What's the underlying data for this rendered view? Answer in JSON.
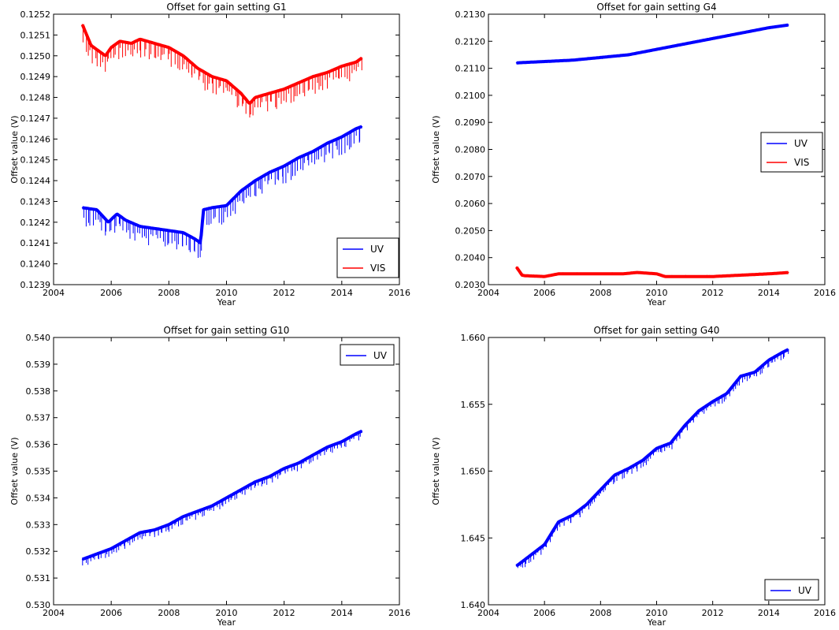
{
  "chart_data": [
    {
      "type": "line",
      "title": "Offset for gain setting G1",
      "xlabel": "Year",
      "ylabel": "Offset value (V)",
      "xlim": [
        2004,
        2016
      ],
      "ylim": [
        0.1239,
        0.1252
      ],
      "xticks": [
        "2004",
        "2006",
        "2008",
        "2010",
        "2012",
        "2014",
        "2016"
      ],
      "yticks": [
        "0.1239",
        "0.1240",
        "0.1241",
        "0.1242",
        "0.1243",
        "0.1244",
        "0.1245",
        "0.1246",
        "0.1247",
        "0.1248",
        "0.1249",
        "0.1250",
        "0.1251",
        "0.1252"
      ],
      "legend_position": "lower-right",
      "grid": false,
      "series": [
        {
          "name": "UV",
          "color": "#0000ff",
          "x": [
            2005.0,
            2005.5,
            2005.9,
            2006.2,
            2006.5,
            2007.0,
            2007.5,
            2008.0,
            2008.5,
            2008.9,
            2009.1,
            2009.2,
            2009.5,
            2010.0,
            2010.5,
            2011.0,
            2011.5,
            2012.0,
            2012.5,
            2013.0,
            2013.5,
            2014.0,
            2014.5,
            2014.7
          ],
          "values": [
            0.12427,
            0.12426,
            0.1242,
            0.12424,
            0.12421,
            0.12418,
            0.12417,
            0.12416,
            0.12415,
            0.12412,
            0.1241,
            0.12426,
            0.12427,
            0.12428,
            0.12435,
            0.1244,
            0.12444,
            0.12447,
            0.12451,
            0.12454,
            0.12458,
            0.12461,
            0.12465,
            0.12466
          ]
        },
        {
          "name": "VIS",
          "color": "#ff0000",
          "x": [
            2005.0,
            2005.3,
            2005.8,
            2006.0,
            2006.3,
            2006.7,
            2007.0,
            2007.5,
            2008.0,
            2008.5,
            2009.0,
            2009.5,
            2010.0,
            2010.5,
            2010.8,
            2011.0,
            2011.5,
            2012.0,
            2012.5,
            2013.0,
            2013.5,
            2014.0,
            2014.5,
            2014.7
          ],
          "values": [
            0.12515,
            0.12505,
            0.125,
            0.12504,
            0.12507,
            0.12506,
            0.12508,
            0.12506,
            0.12504,
            0.125,
            0.12494,
            0.1249,
            0.12488,
            0.12482,
            0.12477,
            0.1248,
            0.12482,
            0.12484,
            0.12487,
            0.1249,
            0.12492,
            0.12495,
            0.12497,
            0.12499
          ]
        }
      ]
    },
    {
      "type": "line",
      "title": "Offset for gain setting G4",
      "xlabel": "Year",
      "ylabel": "Offset value (V)",
      "xlim": [
        2004,
        2016
      ],
      "ylim": [
        0.203,
        0.213
      ],
      "xticks": [
        "2004",
        "2006",
        "2008",
        "2010",
        "2012",
        "2014",
        "2016"
      ],
      "yticks": [
        "0.2030",
        "0.2040",
        "0.2050",
        "0.2060",
        "0.2070",
        "0.2080",
        "0.2090",
        "0.2100",
        "0.2110",
        "0.2120",
        "0.2130"
      ],
      "legend_position": "center-right",
      "grid": false,
      "series": [
        {
          "name": "UV",
          "color": "#0000ff",
          "x": [
            2005.0,
            2006.0,
            2007.0,
            2008.0,
            2009.0,
            2009.5,
            2010.0,
            2011.0,
            2012.0,
            2013.0,
            2014.0,
            2014.7
          ],
          "values": [
            0.2112,
            0.21125,
            0.2113,
            0.2114,
            0.2115,
            0.2116,
            0.2117,
            0.2119,
            0.2121,
            0.2123,
            0.2125,
            0.2126
          ]
        },
        {
          "name": "VIS",
          "color": "#ff0000",
          "x": [
            2005.0,
            2005.2,
            2005.3,
            2006.0,
            2006.5,
            2008.0,
            2008.8,
            2009.3,
            2010.0,
            2010.3,
            2011.0,
            2012.0,
            2013.0,
            2014.0,
            2014.7
          ],
          "values": [
            0.20365,
            0.20335,
            0.20333,
            0.2033,
            0.2034,
            0.2034,
            0.2034,
            0.20345,
            0.2034,
            0.2033,
            0.2033,
            0.2033,
            0.20335,
            0.2034,
            0.20345
          ]
        }
      ]
    },
    {
      "type": "line",
      "title": "Offset for gain setting G10",
      "xlabel": "Year",
      "ylabel": "Offset value (V)",
      "xlim": [
        2004,
        2016
      ],
      "ylim": [
        0.53,
        0.54
      ],
      "xticks": [
        "2004",
        "2006",
        "2008",
        "2010",
        "2012",
        "2014",
        "2016"
      ],
      "yticks": [
        "0.530",
        "0.531",
        "0.532",
        "0.533",
        "0.534",
        "0.535",
        "0.536",
        "0.537",
        "0.538",
        "0.539",
        "0.540"
      ],
      "legend_position": "top-right",
      "grid": false,
      "series": [
        {
          "name": "UV",
          "color": "#0000ff",
          "x": [
            2005.0,
            2005.5,
            2006.0,
            2006.5,
            2007.0,
            2007.5,
            2008.0,
            2008.5,
            2009.0,
            2009.5,
            2010.0,
            2010.5,
            2011.0,
            2011.5,
            2012.0,
            2012.5,
            2013.0,
            2013.5,
            2014.0,
            2014.5,
            2014.7
          ],
          "values": [
            0.5317,
            0.5319,
            0.5321,
            0.5324,
            0.5327,
            0.5328,
            0.533,
            0.5333,
            0.5335,
            0.5337,
            0.534,
            0.5343,
            0.5346,
            0.5348,
            0.5351,
            0.5353,
            0.5356,
            0.5359,
            0.5361,
            0.5364,
            0.5365
          ]
        }
      ]
    },
    {
      "type": "line",
      "title": "Offset for gain setting G40",
      "xlabel": "Year",
      "ylabel": "Offset value (V)",
      "xlim": [
        2004,
        2016
      ],
      "ylim": [
        1.64,
        1.66
      ],
      "xticks": [
        "2004",
        "2006",
        "2008",
        "2010",
        "2012",
        "2014",
        "2016"
      ],
      "yticks": [
        "1.640",
        "1.645",
        "1.650",
        "1.655",
        "1.660"
      ],
      "legend_position": "lower-right",
      "grid": false,
      "series": [
        {
          "name": "UV",
          "color": "#0000ff",
          "x": [
            2005.0,
            2005.5,
            2006.0,
            2006.5,
            2007.0,
            2007.5,
            2008.0,
            2008.5,
            2009.0,
            2009.5,
            2010.0,
            2010.5,
            2011.0,
            2011.5,
            2012.0,
            2012.5,
            2013.0,
            2013.5,
            2014.0,
            2014.5,
            2014.7
          ],
          "values": [
            1.6429,
            1.6437,
            1.6445,
            1.6462,
            1.6467,
            1.6475,
            1.6486,
            1.6497,
            1.6502,
            1.6508,
            1.6517,
            1.6521,
            1.6534,
            1.6545,
            1.6552,
            1.6558,
            1.6571,
            1.6574,
            1.6583,
            1.6589,
            1.6591
          ]
        }
      ]
    }
  ]
}
